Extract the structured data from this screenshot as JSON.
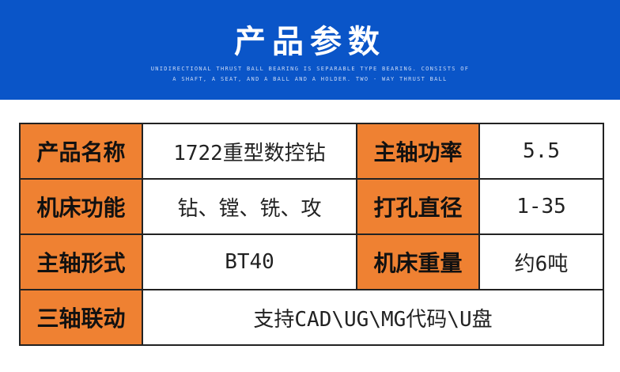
{
  "header": {
    "title": "产品参数",
    "subtitle_line1": "UNIDIRECTIONAL THRUST BALL BEARING IS SEPARABLE TYPE BEARING. CONSISTS OF",
    "subtitle_line2": "A SHAFT, A SEAT, AND A BALL AND A HOLDER. TWO - WAY THRUST BALL",
    "color": "#0a55c8"
  },
  "table": {
    "rows": [
      {
        "k1": "产品名称",
        "v1": "1722重型数控钻",
        "k2": "主轴功率",
        "v2": "5.5"
      },
      {
        "k1": "机床功能",
        "v1": "钻、镗、铣、攻",
        "k2": "打孔直径",
        "v2": "1-35"
      },
      {
        "k1": "主轴形式",
        "v1": "BT40",
        "k2": "机床重量",
        "v2": "约6吨"
      },
      {
        "k1": "三轴联动",
        "v1": "支持CAD\\UG\\MG代码\\U盘"
      }
    ],
    "key_color": "#ef8132"
  }
}
